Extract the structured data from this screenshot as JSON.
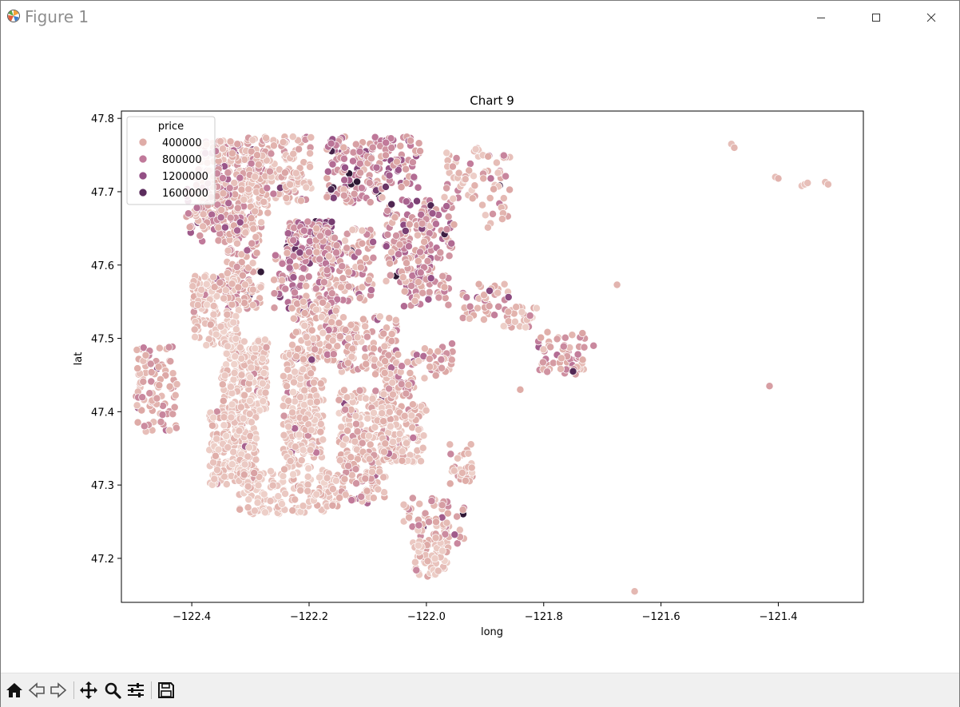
{
  "window": {
    "title": "Figure 1",
    "controls": [
      "minimize",
      "maximize",
      "close"
    ]
  },
  "toolbar": {
    "buttons": [
      {
        "name": "home",
        "icon": "home-icon"
      },
      {
        "name": "back",
        "icon": "back-arrow-icon"
      },
      {
        "name": "forward",
        "icon": "forward-arrow-icon"
      },
      {
        "name": "pan",
        "icon": "move-icon"
      },
      {
        "name": "zoom",
        "icon": "magnifier-icon"
      },
      {
        "name": "configure-subplots",
        "icon": "sliders-icon"
      },
      {
        "name": "save",
        "icon": "floppy-disk-icon"
      }
    ]
  },
  "chart_data": {
    "type": "scatter",
    "title": "Chart 9",
    "xlabel": "long",
    "ylabel": "lat",
    "xlim": [
      -122.52,
      -121.255
    ],
    "ylim": [
      47.14,
      47.81
    ],
    "xticks": [
      -122.4,
      -122.2,
      -122.0,
      -121.8,
      -121.6,
      -121.4
    ],
    "xtick_labels": [
      "−122.4",
      "−122.2",
      "−122.0",
      "−121.8",
      "−121.6",
      "−121.4"
    ],
    "yticks": [
      47.2,
      47.3,
      47.4,
      47.5,
      47.6,
      47.7,
      47.8
    ],
    "ytick_labels": [
      "47.2",
      "47.3",
      "47.4",
      "47.5",
      "47.6",
      "47.7",
      "47.8"
    ],
    "grid": false,
    "legend": {
      "title": "price",
      "placement": "upper-left",
      "entries": [
        {
          "label": "400000",
          "color": "#dfaca7"
        },
        {
          "label": "800000",
          "color": "#c0799a"
        },
        {
          "label": "1200000",
          "color": "#934f85"
        },
        {
          "label": "1600000",
          "color": "#5b2c5c"
        }
      ]
    },
    "hue": "price",
    "color_scale": [
      "#efd3cc",
      "#dfaca7",
      "#c0799a",
      "#934f85",
      "#5b2c5c",
      "#2d1733"
    ],
    "clusters": [
      {
        "x": -122.33,
        "y": 47.71,
        "dx": 0.06,
        "dy": 0.06,
        "n": 300,
        "price": 480000
      },
      {
        "x": -122.36,
        "y": 47.68,
        "dx": 0.05,
        "dy": 0.05,
        "n": 90,
        "price": 700000
      },
      {
        "x": -122.25,
        "y": 47.73,
        "dx": 0.055,
        "dy": 0.045,
        "n": 160,
        "price": 440000
      },
      {
        "x": -122.31,
        "y": 47.6,
        "dx": 0.03,
        "dy": 0.06,
        "n": 100,
        "price": 500000
      },
      {
        "x": -122.12,
        "y": 47.73,
        "dx": 0.05,
        "dy": 0.045,
        "n": 150,
        "price": 720000
      },
      {
        "x": -122.04,
        "y": 47.74,
        "dx": 0.03,
        "dy": 0.035,
        "n": 60,
        "price": 800000
      },
      {
        "x": -122.2,
        "y": 47.63,
        "dx": 0.04,
        "dy": 0.03,
        "n": 130,
        "price": 950000
      },
      {
        "x": -122.23,
        "y": 47.58,
        "dx": 0.03,
        "dy": 0.04,
        "n": 60,
        "price": 820000
      },
      {
        "x": -122.14,
        "y": 47.6,
        "dx": 0.05,
        "dy": 0.05,
        "n": 150,
        "price": 620000
      },
      {
        "x": -122.03,
        "y": 47.63,
        "dx": 0.04,
        "dy": 0.06,
        "n": 140,
        "price": 720000
      },
      {
        "x": -121.98,
        "y": 47.65,
        "dx": 0.03,
        "dy": 0.03,
        "n": 40,
        "price": 760000
      },
      {
        "x": -122.0,
        "y": 47.58,
        "dx": 0.04,
        "dy": 0.04,
        "n": 60,
        "price": 600000
      },
      {
        "x": -122.36,
        "y": 47.54,
        "dx": 0.04,
        "dy": 0.05,
        "n": 180,
        "price": 330000
      },
      {
        "x": -122.31,
        "y": 47.45,
        "dx": 0.04,
        "dy": 0.05,
        "n": 200,
        "price": 310000
      },
      {
        "x": -122.33,
        "y": 47.35,
        "dx": 0.04,
        "dy": 0.05,
        "n": 200,
        "price": 290000
      },
      {
        "x": -122.28,
        "y": 47.29,
        "dx": 0.04,
        "dy": 0.03,
        "n": 80,
        "price": 280000
      },
      {
        "x": -122.21,
        "y": 47.4,
        "dx": 0.035,
        "dy": 0.08,
        "n": 220,
        "price": 330000
      },
      {
        "x": -122.19,
        "y": 47.51,
        "dx": 0.04,
        "dy": 0.04,
        "n": 130,
        "price": 410000
      },
      {
        "x": -122.19,
        "y": 47.29,
        "dx": 0.04,
        "dy": 0.03,
        "n": 80,
        "price": 290000
      },
      {
        "x": -122.1,
        "y": 47.49,
        "dx": 0.05,
        "dy": 0.04,
        "n": 110,
        "price": 480000
      },
      {
        "x": -122.1,
        "y": 47.38,
        "dx": 0.05,
        "dy": 0.05,
        "n": 180,
        "price": 380000
      },
      {
        "x": -122.04,
        "y": 47.37,
        "dx": 0.04,
        "dy": 0.04,
        "n": 110,
        "price": 340000
      },
      {
        "x": -122.04,
        "y": 47.45,
        "dx": 0.035,
        "dy": 0.03,
        "n": 60,
        "price": 520000
      },
      {
        "x": -122.11,
        "y": 47.31,
        "dx": 0.04,
        "dy": 0.035,
        "n": 70,
        "price": 480000
      },
      {
        "x": -121.98,
        "y": 47.47,
        "dx": 0.025,
        "dy": 0.025,
        "n": 30,
        "price": 520000
      },
      {
        "x": -122.0,
        "y": 47.25,
        "dx": 0.04,
        "dy": 0.035,
        "n": 50,
        "price": 450000
      },
      {
        "x": -121.99,
        "y": 47.2,
        "dx": 0.03,
        "dy": 0.025,
        "n": 60,
        "price": 300000
      },
      {
        "x": -122.46,
        "y": 47.43,
        "dx": 0.035,
        "dy": 0.06,
        "n": 90,
        "price": 520000
      },
      {
        "x": -121.94,
        "y": 47.72,
        "dx": 0.03,
        "dy": 0.04,
        "n": 40,
        "price": 360000
      },
      {
        "x": -121.88,
        "y": 47.7,
        "dx": 0.025,
        "dy": 0.05,
        "n": 40,
        "price": 480000
      },
      {
        "x": -121.9,
        "y": 47.55,
        "dx": 0.04,
        "dy": 0.025,
        "n": 40,
        "price": 530000
      },
      {
        "x": -121.84,
        "y": 47.53,
        "dx": 0.03,
        "dy": 0.015,
        "n": 25,
        "price": 380000
      },
      {
        "x": -121.77,
        "y": 47.48,
        "dx": 0.04,
        "dy": 0.03,
        "n": 60,
        "price": 560000
      },
      {
        "x": -121.94,
        "y": 47.33,
        "dx": 0.02,
        "dy": 0.03,
        "n": 30,
        "price": 420000
      },
      {
        "x": -121.96,
        "y": 47.25,
        "dx": 0.025,
        "dy": 0.03,
        "n": 25,
        "price": 620000
      }
    ],
    "points": [
      {
        "x": -121.48,
        "y": 47.765,
        "price": 350000
      },
      {
        "x": -121.475,
        "y": 47.76,
        "price": 420000
      },
      {
        "x": -121.405,
        "y": 47.72,
        "price": 360000
      },
      {
        "x": -121.4,
        "y": 47.718,
        "price": 450000
      },
      {
        "x": -121.36,
        "y": 47.708,
        "price": 320000
      },
      {
        "x": -121.355,
        "y": 47.71,
        "price": 300000
      },
      {
        "x": -121.35,
        "y": 47.712,
        "price": 340000
      },
      {
        "x": -121.32,
        "y": 47.713,
        "price": 350000
      },
      {
        "x": -121.315,
        "y": 47.71,
        "price": 380000
      },
      {
        "x": -121.675,
        "y": 47.573,
        "price": 440000
      },
      {
        "x": -121.415,
        "y": 47.435,
        "price": 620000
      },
      {
        "x": -121.645,
        "y": 47.155,
        "price": 410000
      },
      {
        "x": -121.84,
        "y": 47.43,
        "price": 520000
      },
      {
        "x": -121.75,
        "y": 47.455,
        "price": 1700000
      },
      {
        "x": -121.715,
        "y": 47.49,
        "price": 780000
      }
    ]
  }
}
